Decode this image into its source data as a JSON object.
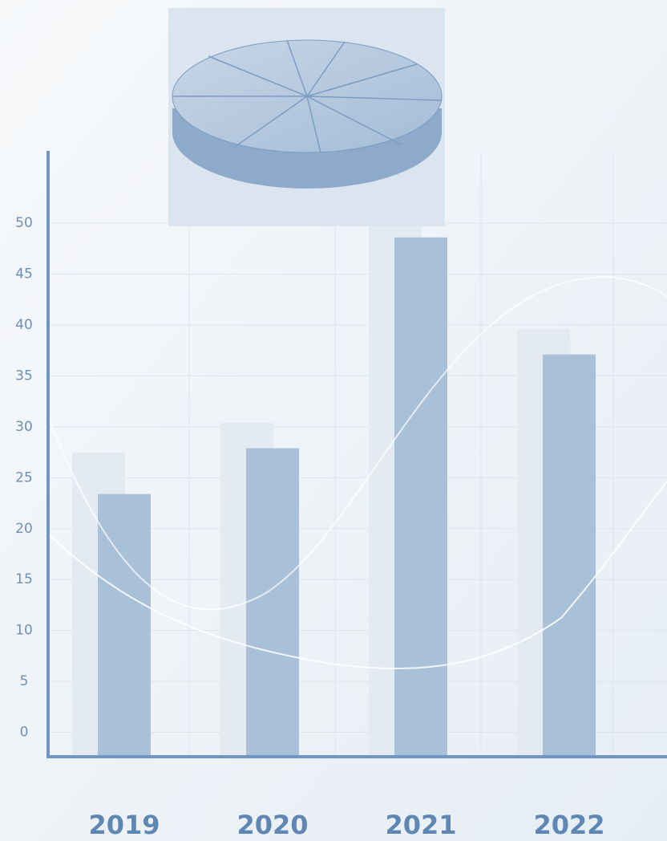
{
  "chart_data": {
    "type": "bar",
    "categories": [
      "2019",
      "2020",
      "2021",
      "2022"
    ],
    "series": [
      {
        "color": "#e3eaf2",
        "values": [
          27.5,
          30.4,
          51,
          39.6
        ]
      },
      {
        "color": "#a9c0d9",
        "values": [
          23.4,
          27.9,
          48.6,
          37.1
        ]
      }
    ],
    "ylim": [
      -2.4,
      57.1
    ],
    "yticks": [
      0,
      5,
      10,
      15,
      20,
      25,
      30,
      35,
      40,
      45,
      50
    ],
    "grid": true
  }
}
